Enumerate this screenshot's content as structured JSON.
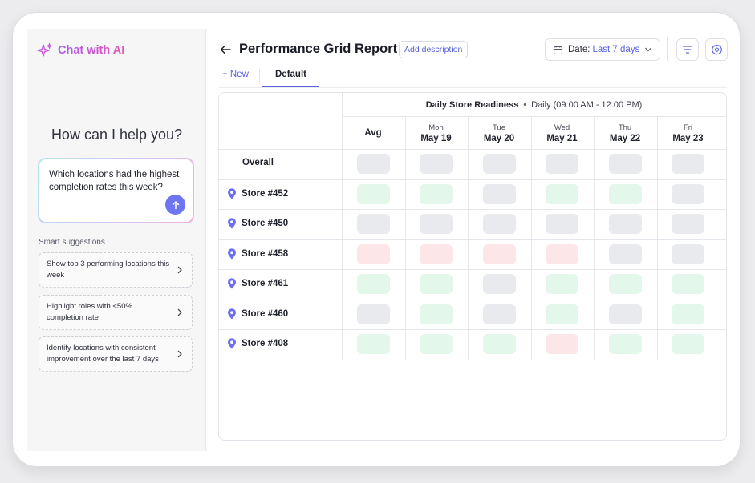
{
  "sidebar": {
    "brand": "Chat with AI",
    "help_title": "How can I help you?",
    "prompt": "Which locations had the highest completion rates this week?",
    "suggestions_title": "Smart suggestions",
    "suggestions": [
      "Show top 3 performing locations this week",
      "Highlight roles with <50% completion rate",
      "Identify locations with consistent improvement over the last 7 days"
    ]
  },
  "header": {
    "title": "Performance Grid Report",
    "add_description": "Add description",
    "date_label": "Date:",
    "date_value": "Last 7 days"
  },
  "tabs": {
    "new": "+ New",
    "default": "Default"
  },
  "grid": {
    "band_title": "Daily Store Readiness",
    "band_sub": "Daily (09:00 AM - 12:00 PM)",
    "avg_label": "Avg",
    "days": [
      {
        "dow": "Mon",
        "date": "May 19"
      },
      {
        "dow": "Tue",
        "date": "May 20"
      },
      {
        "dow": "Wed",
        "date": "May 21"
      },
      {
        "dow": "Thu",
        "date": "May 22"
      },
      {
        "dow": "Fri",
        "date": "May 23"
      }
    ],
    "rows": [
      {
        "label": "Overall",
        "pin": false,
        "cells": [
          "neutral",
          "neutral",
          "neutral",
          "neutral",
          "neutral",
          "neutral"
        ]
      },
      {
        "label": "Store #452",
        "pin": true,
        "cells": [
          "good",
          "good",
          "neutral",
          "good",
          "good",
          "neutral"
        ]
      },
      {
        "label": "Store #450",
        "pin": true,
        "cells": [
          "neutral",
          "neutral",
          "neutral",
          "neutral",
          "neutral",
          "neutral"
        ]
      },
      {
        "label": "Store #458",
        "pin": true,
        "cells": [
          "bad",
          "bad",
          "bad",
          "bad",
          "neutral",
          "neutral"
        ]
      },
      {
        "label": "Store #461",
        "pin": true,
        "cells": [
          "good",
          "good",
          "neutral",
          "good",
          "good",
          "good"
        ]
      },
      {
        "label": "Store #460",
        "pin": true,
        "cells": [
          "neutral",
          "good",
          "neutral",
          "good",
          "neutral",
          "good"
        ]
      },
      {
        "label": "Store #408",
        "pin": true,
        "cells": [
          "good",
          "good",
          "good",
          "bad",
          "good",
          "good"
        ]
      }
    ]
  },
  "colors": {
    "accent": "#5a62e0",
    "good": "#e3f8ea",
    "bad": "#fde6e8",
    "neutral": "#e8eaee",
    "pin": "#6d6ff0"
  }
}
